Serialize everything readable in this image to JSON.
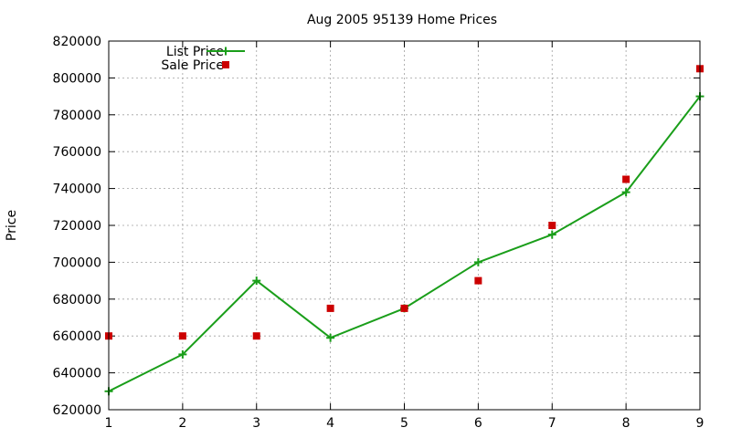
{
  "chart_data": {
    "type": "line",
    "title": "Aug 2005 95139 Home Prices",
    "xlabel": "",
    "ylabel": "Price",
    "xlim": [
      1,
      9
    ],
    "ylim": [
      620000,
      820000
    ],
    "x_ticks": [
      "1",
      "2",
      "3",
      "4",
      "5",
      "6",
      "7",
      "8",
      "9"
    ],
    "y_ticks": [
      "620000",
      "640000",
      "660000",
      "680000",
      "700000",
      "720000",
      "740000",
      "760000",
      "780000",
      "800000",
      "820000"
    ],
    "grid": true,
    "legend_position": "top-left",
    "x": [
      1,
      2,
      3,
      4,
      5,
      6,
      7,
      8,
      9
    ],
    "series": [
      {
        "name": "List Price",
        "style": "linespoints",
        "marker": "plus",
        "color": "#1a9e1a",
        "values": [
          630000,
          650000,
          690000,
          659000,
          675000,
          700000,
          715000,
          738000,
          790000
        ]
      },
      {
        "name": "Sale Price",
        "style": "points",
        "marker": "square",
        "color": "#cc0000",
        "values": [
          660000,
          660000,
          660000,
          675000,
          675000,
          690000,
          720000,
          745000,
          805000
        ]
      }
    ]
  }
}
